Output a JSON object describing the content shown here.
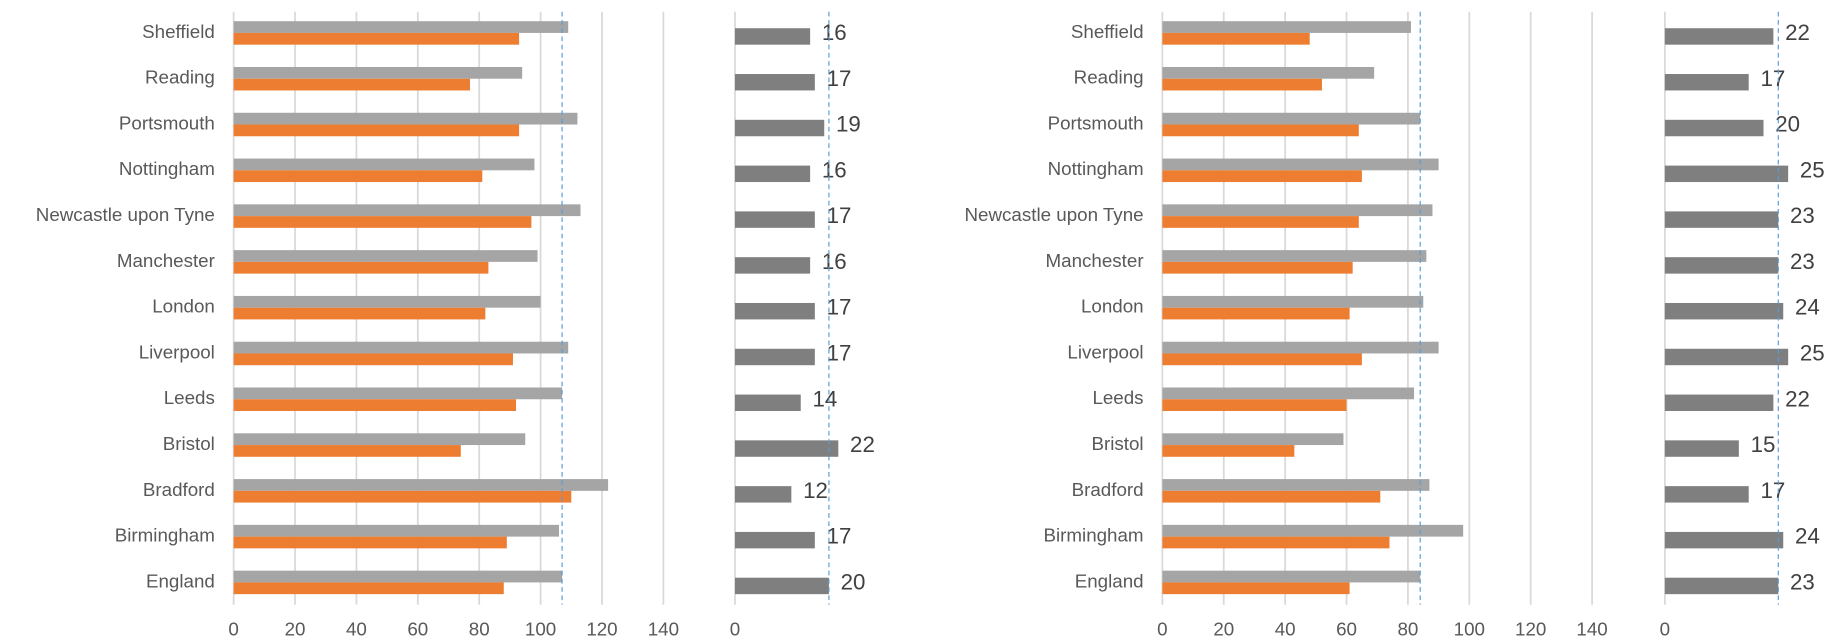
{
  "chart_data": [
    {
      "type": "bar",
      "categories": [
        "Sheffield",
        "Reading",
        "Portsmouth",
        "Nottingham",
        "Newcastle upon Tyne",
        "Manchester",
        "London",
        "Liverpool",
        "Leeds",
        "Bristol",
        "Bradford",
        "Birmingham",
        "England"
      ],
      "series": [
        {
          "color": "#a5a5a5",
          "values": [
            109,
            94,
            112,
            98,
            113,
            99,
            100,
            109,
            107,
            95,
            122,
            106,
            107
          ]
        },
        {
          "color": "#ed7d31",
          "values": [
            93,
            77,
            93,
            81,
            97,
            83,
            82,
            91,
            92,
            74,
            110,
            89,
            88
          ]
        }
      ],
      "xlim": [
        0,
        140
      ],
      "xticks": [
        0,
        20,
        40,
        60,
        80,
        100,
        120,
        140
      ],
      "grid": true,
      "reference_line": 107
    },
    {
      "type": "bar",
      "color": "#7f7f7f",
      "values": [
        16,
        17,
        19,
        16,
        17,
        16,
        17,
        17,
        14,
        22,
        12,
        17,
        20
      ],
      "xlim": [
        0,
        25
      ],
      "xticks": [
        0
      ],
      "reference_line": 20
    },
    {
      "type": "bar",
      "categories": [
        "Sheffield",
        "Reading",
        "Portsmouth",
        "Nottingham",
        "Newcastle upon Tyne",
        "Manchester",
        "London",
        "Liverpool",
        "Leeds",
        "Bristol",
        "Bradford",
        "Birmingham",
        "England"
      ],
      "series": [
        {
          "color": "#a5a5a5",
          "values": [
            81,
            69,
            84,
            90,
            88,
            86,
            85,
            90,
            82,
            59,
            87,
            98,
            84
          ]
        },
        {
          "color": "#ed7d31",
          "values": [
            48,
            52,
            64,
            65,
            64,
            62,
            61,
            65,
            60,
            43,
            71,
            74,
            61
          ]
        }
      ],
      "xlim": [
        0,
        140
      ],
      "xticks": [
        0,
        20,
        40,
        60,
        80,
        100,
        120,
        140
      ],
      "grid": true,
      "reference_line": 84
    },
    {
      "type": "bar",
      "color": "#7f7f7f",
      "values": [
        22,
        17,
        20,
        25,
        23,
        23,
        24,
        25,
        22,
        15,
        17,
        24,
        23
      ],
      "xlim": [
        0,
        25
      ],
      "xticks": [
        0
      ],
      "reference_line": 23
    }
  ]
}
